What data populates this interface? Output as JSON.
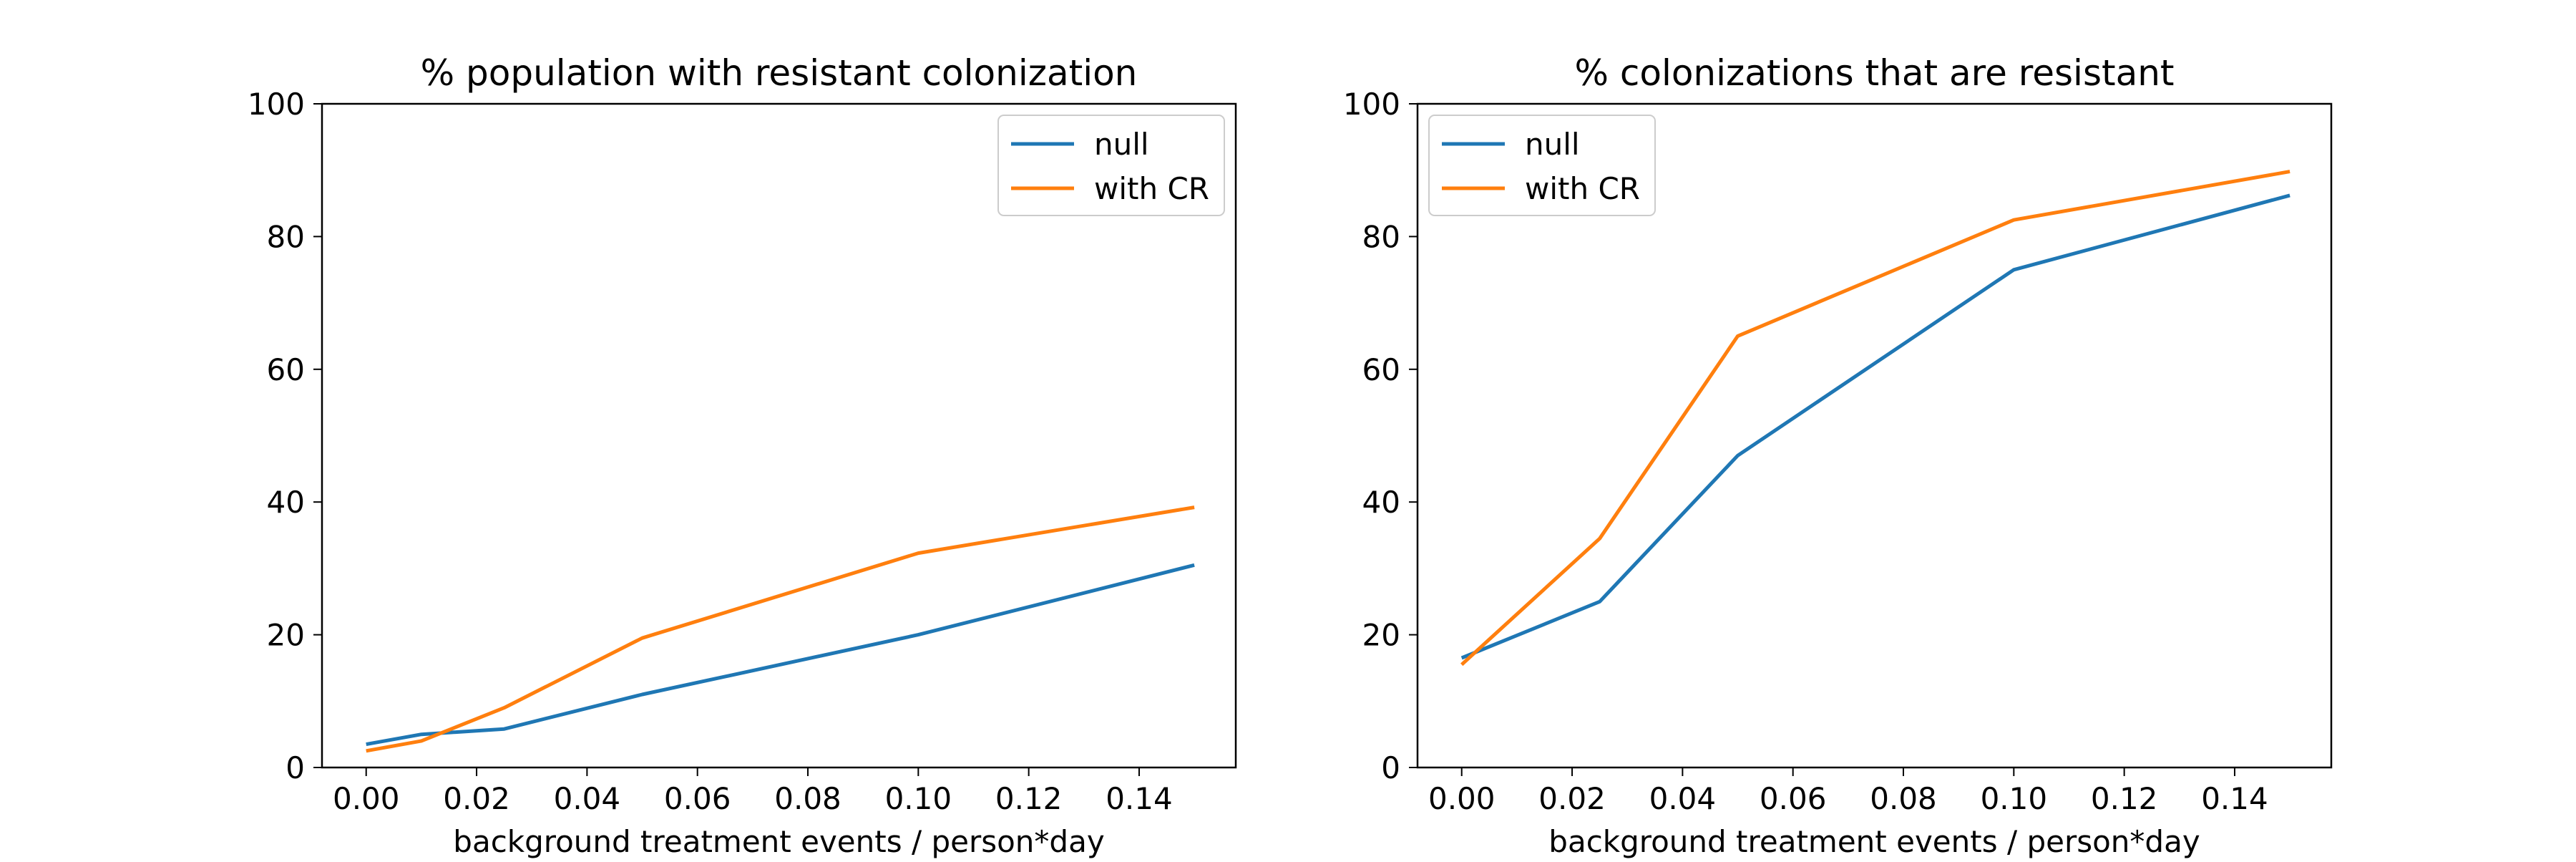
{
  "chart_data": [
    {
      "type": "line",
      "title": "% population with resistant colonization",
      "xlabel": "background treatment events / person*day",
      "ylabel": "",
      "xlim": [
        -0.008,
        0.1575
      ],
      "ylim": [
        0,
        100
      ],
      "x_ticks": [
        "0.00",
        "0.02",
        "0.04",
        "0.06",
        "0.08",
        "0.10",
        "0.12",
        "0.14"
      ],
      "y_ticks": [
        "0",
        "20",
        "40",
        "60",
        "80",
        "100"
      ],
      "legend_position": "top-right",
      "grid": false,
      "series": [
        {
          "name": "null",
          "color": "#1f77b4",
          "x": [
            0.0,
            0.01,
            0.025,
            0.05,
            0.1,
            0.15
          ],
          "y": [
            3.5,
            5.0,
            5.8,
            11.0,
            20.0,
            30.5
          ]
        },
        {
          "name": "with CR",
          "color": "#ff7f0e",
          "x": [
            0.0,
            0.01,
            0.025,
            0.05,
            0.1,
            0.15
          ],
          "y": [
            2.5,
            4.0,
            9.0,
            19.5,
            32.3,
            39.2
          ]
        }
      ]
    },
    {
      "type": "line",
      "title": "% colonizations that are resistant",
      "xlabel": "background treatment events / person*day",
      "ylabel": "",
      "xlim": [
        -0.008,
        0.1575
      ],
      "ylim": [
        0,
        100
      ],
      "x_ticks": [
        "0.00",
        "0.02",
        "0.04",
        "0.06",
        "0.08",
        "0.10",
        "0.12",
        "0.14"
      ],
      "y_ticks": [
        "0",
        "20",
        "40",
        "60",
        "80",
        "100"
      ],
      "legend_position": "top-left",
      "grid": false,
      "series": [
        {
          "name": "null",
          "color": "#1f77b4",
          "x": [
            0.0,
            0.025,
            0.05,
            0.1,
            0.15
          ],
          "y": [
            16.5,
            25.0,
            47.0,
            75.0,
            86.2
          ]
        },
        {
          "name": "with CR",
          "color": "#ff7f0e",
          "x": [
            0.0,
            0.025,
            0.05,
            0.1,
            0.15
          ],
          "y": [
            15.5,
            34.5,
            65.0,
            82.5,
            89.8
          ]
        }
      ]
    }
  ]
}
